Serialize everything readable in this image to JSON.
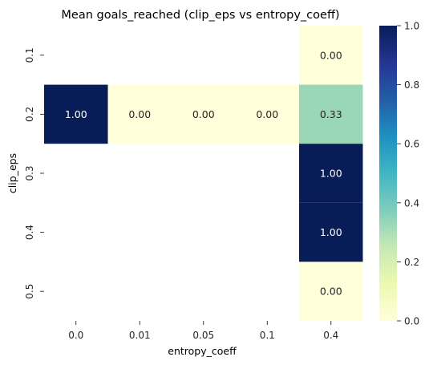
{
  "chart_data": {
    "type": "heatmap",
    "title": "Mean goals_reached (clip_eps vs entropy_coeff)",
    "xlabel": "entropy_coeff",
    "ylabel": "clip_eps",
    "x_categories": [
      "0.0",
      "0.01",
      "0.05",
      "0.1",
      "0.4"
    ],
    "y_categories": [
      "0.1",
      "0.2",
      "0.3",
      "0.4",
      "0.5"
    ],
    "cells": [
      {
        "x": "0.4",
        "y": "0.1",
        "value": 0.0,
        "label": "0.00"
      },
      {
        "x": "0.0",
        "y": "0.2",
        "value": 1.0,
        "label": "1.00"
      },
      {
        "x": "0.01",
        "y": "0.2",
        "value": 0.0,
        "label": "0.00"
      },
      {
        "x": "0.05",
        "y": "0.2",
        "value": 0.0,
        "label": "0.00"
      },
      {
        "x": "0.1",
        "y": "0.2",
        "value": 0.0,
        "label": "0.00"
      },
      {
        "x": "0.4",
        "y": "0.2",
        "value": 0.33,
        "label": "0.33"
      },
      {
        "x": "0.4",
        "y": "0.3",
        "value": 1.0,
        "label": "1.00"
      },
      {
        "x": "0.4",
        "y": "0.4",
        "value": 1.0,
        "label": "1.00"
      },
      {
        "x": "0.4",
        "y": "0.5",
        "value": 0.0,
        "label": "0.00"
      }
    ],
    "colorscale": "YlGnBu",
    "colorbar": {
      "range": [
        0.0,
        1.0
      ],
      "ticks": [
        "0.0",
        "0.2",
        "0.4",
        "0.6",
        "0.8",
        "1.0"
      ]
    },
    "grid": false
  }
}
